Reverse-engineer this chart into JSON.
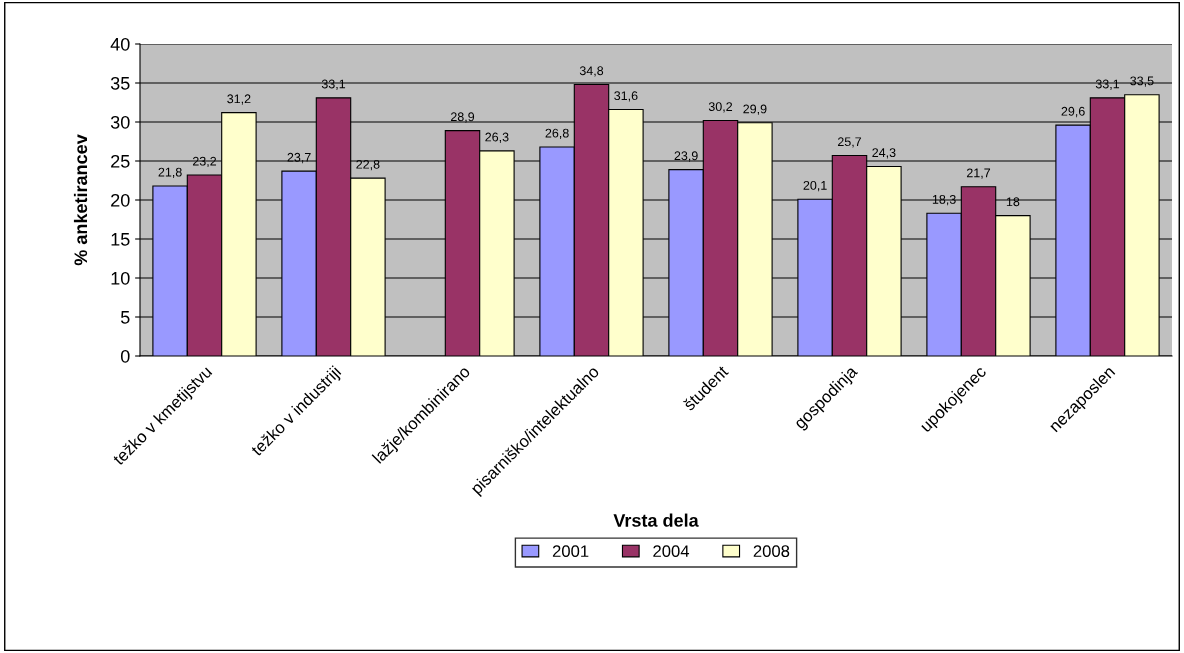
{
  "chart_data": {
    "type": "bar",
    "xlabel": "Vrsta dela",
    "ylabel": "% anketirancev",
    "categories": [
      "težko v kmetijstvu",
      "težko v industriji",
      "lažje/kombinirano",
      "pisarniško/intelektualno",
      "študent",
      "gospodinja",
      "upokojenec",
      "nezaposlen"
    ],
    "series": [
      {
        "name": "2001",
        "color": "#9999ff",
        "values": [
          21.8,
          23.7,
          null,
          26.8,
          23.9,
          20.1,
          18.3,
          29.6
        ],
        "value_labels": [
          "21,8",
          "23,7",
          null,
          "26,8",
          "23,9",
          "20,1",
          "18,3",
          "29,6"
        ]
      },
      {
        "name": "2004",
        "color": "#993366",
        "values": [
          23.2,
          33.1,
          28.9,
          34.8,
          30.2,
          25.7,
          21.7,
          33.1
        ],
        "value_labels": [
          "23,2",
          "33,1",
          "28,9",
          "34,8",
          "30,2",
          "25,7",
          "21,7",
          "33,1"
        ]
      },
      {
        "name": "2008",
        "color": "#ffffcc",
        "values": [
          31.2,
          22.8,
          26.3,
          31.6,
          29.9,
          24.3,
          18,
          33.5
        ],
        "value_labels": [
          "31,2",
          "22,8",
          "26,3",
          "31,6",
          "29,9",
          "24,3",
          "18",
          "33,5"
        ]
      }
    ],
    "ylim": [
      0,
      40
    ],
    "yticks": [
      0,
      5,
      10,
      15,
      20,
      25,
      30,
      35,
      40
    ],
    "grid": "y",
    "legend": "bottom"
  }
}
